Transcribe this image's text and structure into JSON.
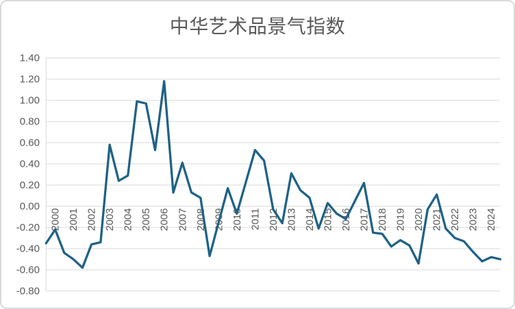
{
  "page": {
    "background_color": "#FFFFFF",
    "frame_border_color": "#D9D9D9"
  },
  "chart_data": {
    "type": "line",
    "title": "中华艺术品景气指数",
    "legend": "none",
    "grid": "horizontal",
    "gridline_color": "#D9D9D9",
    "text_color": "#595959",
    "series": [
      {
        "name": "中华艺术品景气指数",
        "color": "#1F6285",
        "stroke_width": 3.3,
        "values": [
          -0.35,
          -0.22,
          -0.44,
          -0.5,
          -0.58,
          -0.36,
          -0.34,
          0.58,
          0.24,
          0.29,
          0.99,
          0.97,
          0.53,
          1.18,
          0.13,
          0.41,
          0.13,
          0.08,
          -0.47,
          -0.15,
          0.17,
          -0.07,
          0.23,
          0.53,
          0.43,
          -0.03,
          -0.16,
          0.31,
          0.15,
          0.08,
          -0.21,
          0.03,
          -0.07,
          -0.12,
          0.05,
          0.22,
          -0.25,
          -0.26,
          -0.38,
          -0.32,
          -0.37,
          -0.54,
          -0.03,
          0.11,
          -0.21,
          -0.3,
          -0.33,
          -0.43,
          -0.52,
          -0.48,
          -0.5
        ]
      }
    ],
    "x_axis": {
      "tick_labels": [
        "2000",
        "2001",
        "2002",
        "2003",
        "2004",
        "2005",
        "2006",
        "2007",
        "2008",
        "2009",
        "2010",
        "2011",
        "2012",
        "2013",
        "2014",
        "2015",
        "2016",
        "2017",
        "2018",
        "2019",
        "2020",
        "2021",
        "2022",
        "2023",
        "2024"
      ],
      "tick_label_rotation_deg": -90,
      "note": "Semi-annual data (two points per year). Year tick labels align with odd-indexed points; the series starts one half-year point before the 2000 tick and ends one half-year point after the 2024 tick.",
      "values_at_year_ticks": {
        "2000": -0.22,
        "2001": -0.5,
        "2002": -0.36,
        "2003": 0.58,
        "2004": 0.29,
        "2005": 0.97,
        "2006": 1.18,
        "2007": 0.41,
        "2008": 0.08,
        "2009": -0.15,
        "2010": -0.07,
        "2011": 0.53,
        "2012": -0.03,
        "2013": 0.31,
        "2014": 0.08,
        "2015": 0.03,
        "2016": -0.12,
        "2017": 0.22,
        "2018": -0.26,
        "2019": -0.32,
        "2020": -0.54,
        "2021": 0.11,
        "2022": -0.3,
        "2023": -0.43,
        "2024": -0.48
      }
    },
    "y_axis": {
      "min": -0.8,
      "max": 1.4,
      "step": 0.2,
      "tick_labels": [
        "1.40",
        "1.20",
        "1.00",
        "0.80",
        "0.60",
        "0.40",
        "0.20",
        "0.00",
        "-0.20",
        "-0.40",
        "-0.60",
        "-0.80"
      ]
    }
  }
}
